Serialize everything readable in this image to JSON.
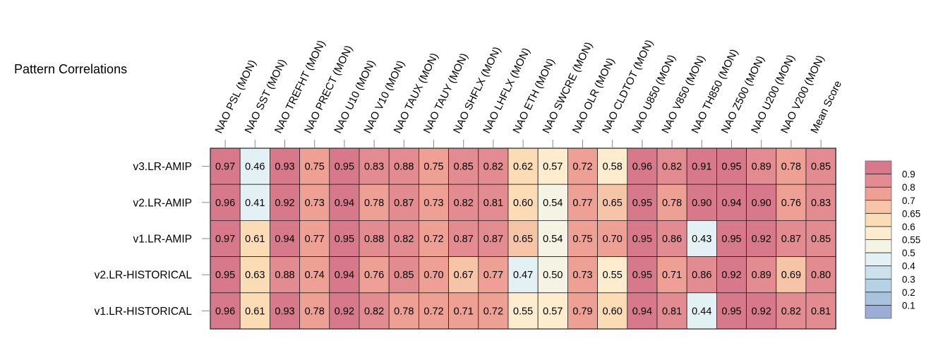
{
  "chart_data": {
    "type": "heatmap",
    "title": "Pattern Correlations",
    "columns": [
      "NAO PSL (MON)",
      "NAO SST (MON)",
      "NAO TREFHT (MON)",
      "NAO PRECT (MON)",
      "NAO U10 (MON)",
      "NAO V10 (MON)",
      "NAO TAUX (MON)",
      "NAO TAUY (MON)",
      "NAO SHFLX (MON)",
      "NAO LHFLX (MON)",
      "NAO ETH (MON)",
      "NAO SWCRE (MON)",
      "NAO OLR (MON)",
      "NAO CLDTOT (MON)",
      "NAO U850 (MON)",
      "NAO V850 (MON)",
      "NAO TH850 (MON)",
      "NAO Z500 (MON)",
      "NAO U200 (MON)",
      "NAO V200 (MON)",
      "Mean Score"
    ],
    "rows": [
      "v3.LR-AMIP",
      "v2.LR-AMIP",
      "v1.LR-AMIP",
      "v2.LR-HISTORICAL",
      "v1.LR-HISTORICAL"
    ],
    "values": [
      [
        0.97,
        0.46,
        0.93,
        0.75,
        0.95,
        0.83,
        0.88,
        0.75,
        0.85,
        0.82,
        0.62,
        0.57,
        0.72,
        0.58,
        0.96,
        0.82,
        0.91,
        0.95,
        0.89,
        0.78,
        0.85
      ],
      [
        0.96,
        0.41,
        0.92,
        0.73,
        0.94,
        0.78,
        0.87,
        0.73,
        0.82,
        0.81,
        0.6,
        0.54,
        0.77,
        0.65,
        0.95,
        0.78,
        0.9,
        0.94,
        0.9,
        0.76,
        0.83
      ],
      [
        0.97,
        0.61,
        0.94,
        0.77,
        0.95,
        0.88,
        0.82,
        0.72,
        0.87,
        0.87,
        0.65,
        0.54,
        0.75,
        0.7,
        0.95,
        0.86,
        0.43,
        0.95,
        0.92,
        0.87,
        0.85
      ],
      [
        0.95,
        0.63,
        0.88,
        0.74,
        0.94,
        0.76,
        0.85,
        0.7,
        0.67,
        0.77,
        0.47,
        0.5,
        0.73,
        0.55,
        0.95,
        0.71,
        0.86,
        0.92,
        0.89,
        0.69,
        0.8
      ],
      [
        0.96,
        0.61,
        0.93,
        0.78,
        0.92,
        0.82,
        0.78,
        0.72,
        0.71,
        0.72,
        0.55,
        0.57,
        0.79,
        0.6,
        0.94,
        0.81,
        0.44,
        0.95,
        0.92,
        0.82,
        0.81
      ]
    ],
    "value_labels": [
      [
        "0.97",
        "0.46",
        "0.93",
        "0.75",
        "0.95",
        "0.83",
        "0.88",
        "0.75",
        "0.85",
        "0.82",
        "0.62",
        "0.57",
        "0.72",
        "0.58",
        "0.96",
        "0.82",
        "0.91",
        "0.95",
        "0.89",
        "0.78",
        "0.85"
      ],
      [
        "0.96",
        "0.41",
        "0.92",
        "0.73",
        "0.94",
        "0.78",
        "0.87",
        "0.73",
        "0.82",
        "0.81",
        "0.60",
        "0.54",
        "0.77",
        "0.65",
        "0.95",
        "0.78",
        "0.90",
        "0.94",
        "0.90",
        "0.76",
        "0.83"
      ],
      [
        "0.97",
        "0.61",
        "0.94",
        "0.77",
        "0.95",
        "0.88",
        "0.82",
        "0.72",
        "0.87",
        "0.87",
        "0.65",
        "0.54",
        "0.75",
        "0.70",
        "0.95",
        "0.86",
        "0.43",
        "0.95",
        "0.92",
        "0.87",
        "0.85"
      ],
      [
        "0.95",
        "0.63",
        "0.88",
        "0.74",
        "0.94",
        "0.76",
        "0.85",
        "0.70",
        "0.67",
        "0.77",
        "0.47",
        "0.50",
        "0.73",
        "0.55",
        "0.95",
        "0.71",
        "0.86",
        "0.92",
        "0.89",
        "0.69",
        "0.80"
      ],
      [
        "0.96",
        "0.61",
        "0.93",
        "0.78",
        "0.92",
        "0.82",
        "0.78",
        "0.72",
        "0.71",
        "0.72",
        "0.55",
        "0.57",
        "0.79",
        "0.60",
        "0.94",
        "0.81",
        "0.44",
        "0.95",
        "0.92",
        "0.82",
        "0.81"
      ]
    ],
    "colorbar": {
      "levels": [
        0.1,
        0.2,
        0.3,
        0.4,
        0.5,
        0.55,
        0.6,
        0.65,
        0.7,
        0.8,
        0.9
      ],
      "tick_labels": [
        "0.1",
        "0.2",
        "0.3",
        "0.4",
        "0.5",
        "0.55",
        "0.6",
        "0.65",
        "0.7",
        "0.8",
        "0.9"
      ],
      "colors": [
        "#9badd4",
        "#a9c3de",
        "#b5d2e4",
        "#cbe2ec",
        "#e4f1f4",
        "#f5f3e4",
        "#fdeccd",
        "#fbdcb5",
        "#f6c4a6",
        "#eea094",
        "#e28b90",
        "#d7798b"
      ]
    },
    "grid": true,
    "legend_position": "right"
  }
}
